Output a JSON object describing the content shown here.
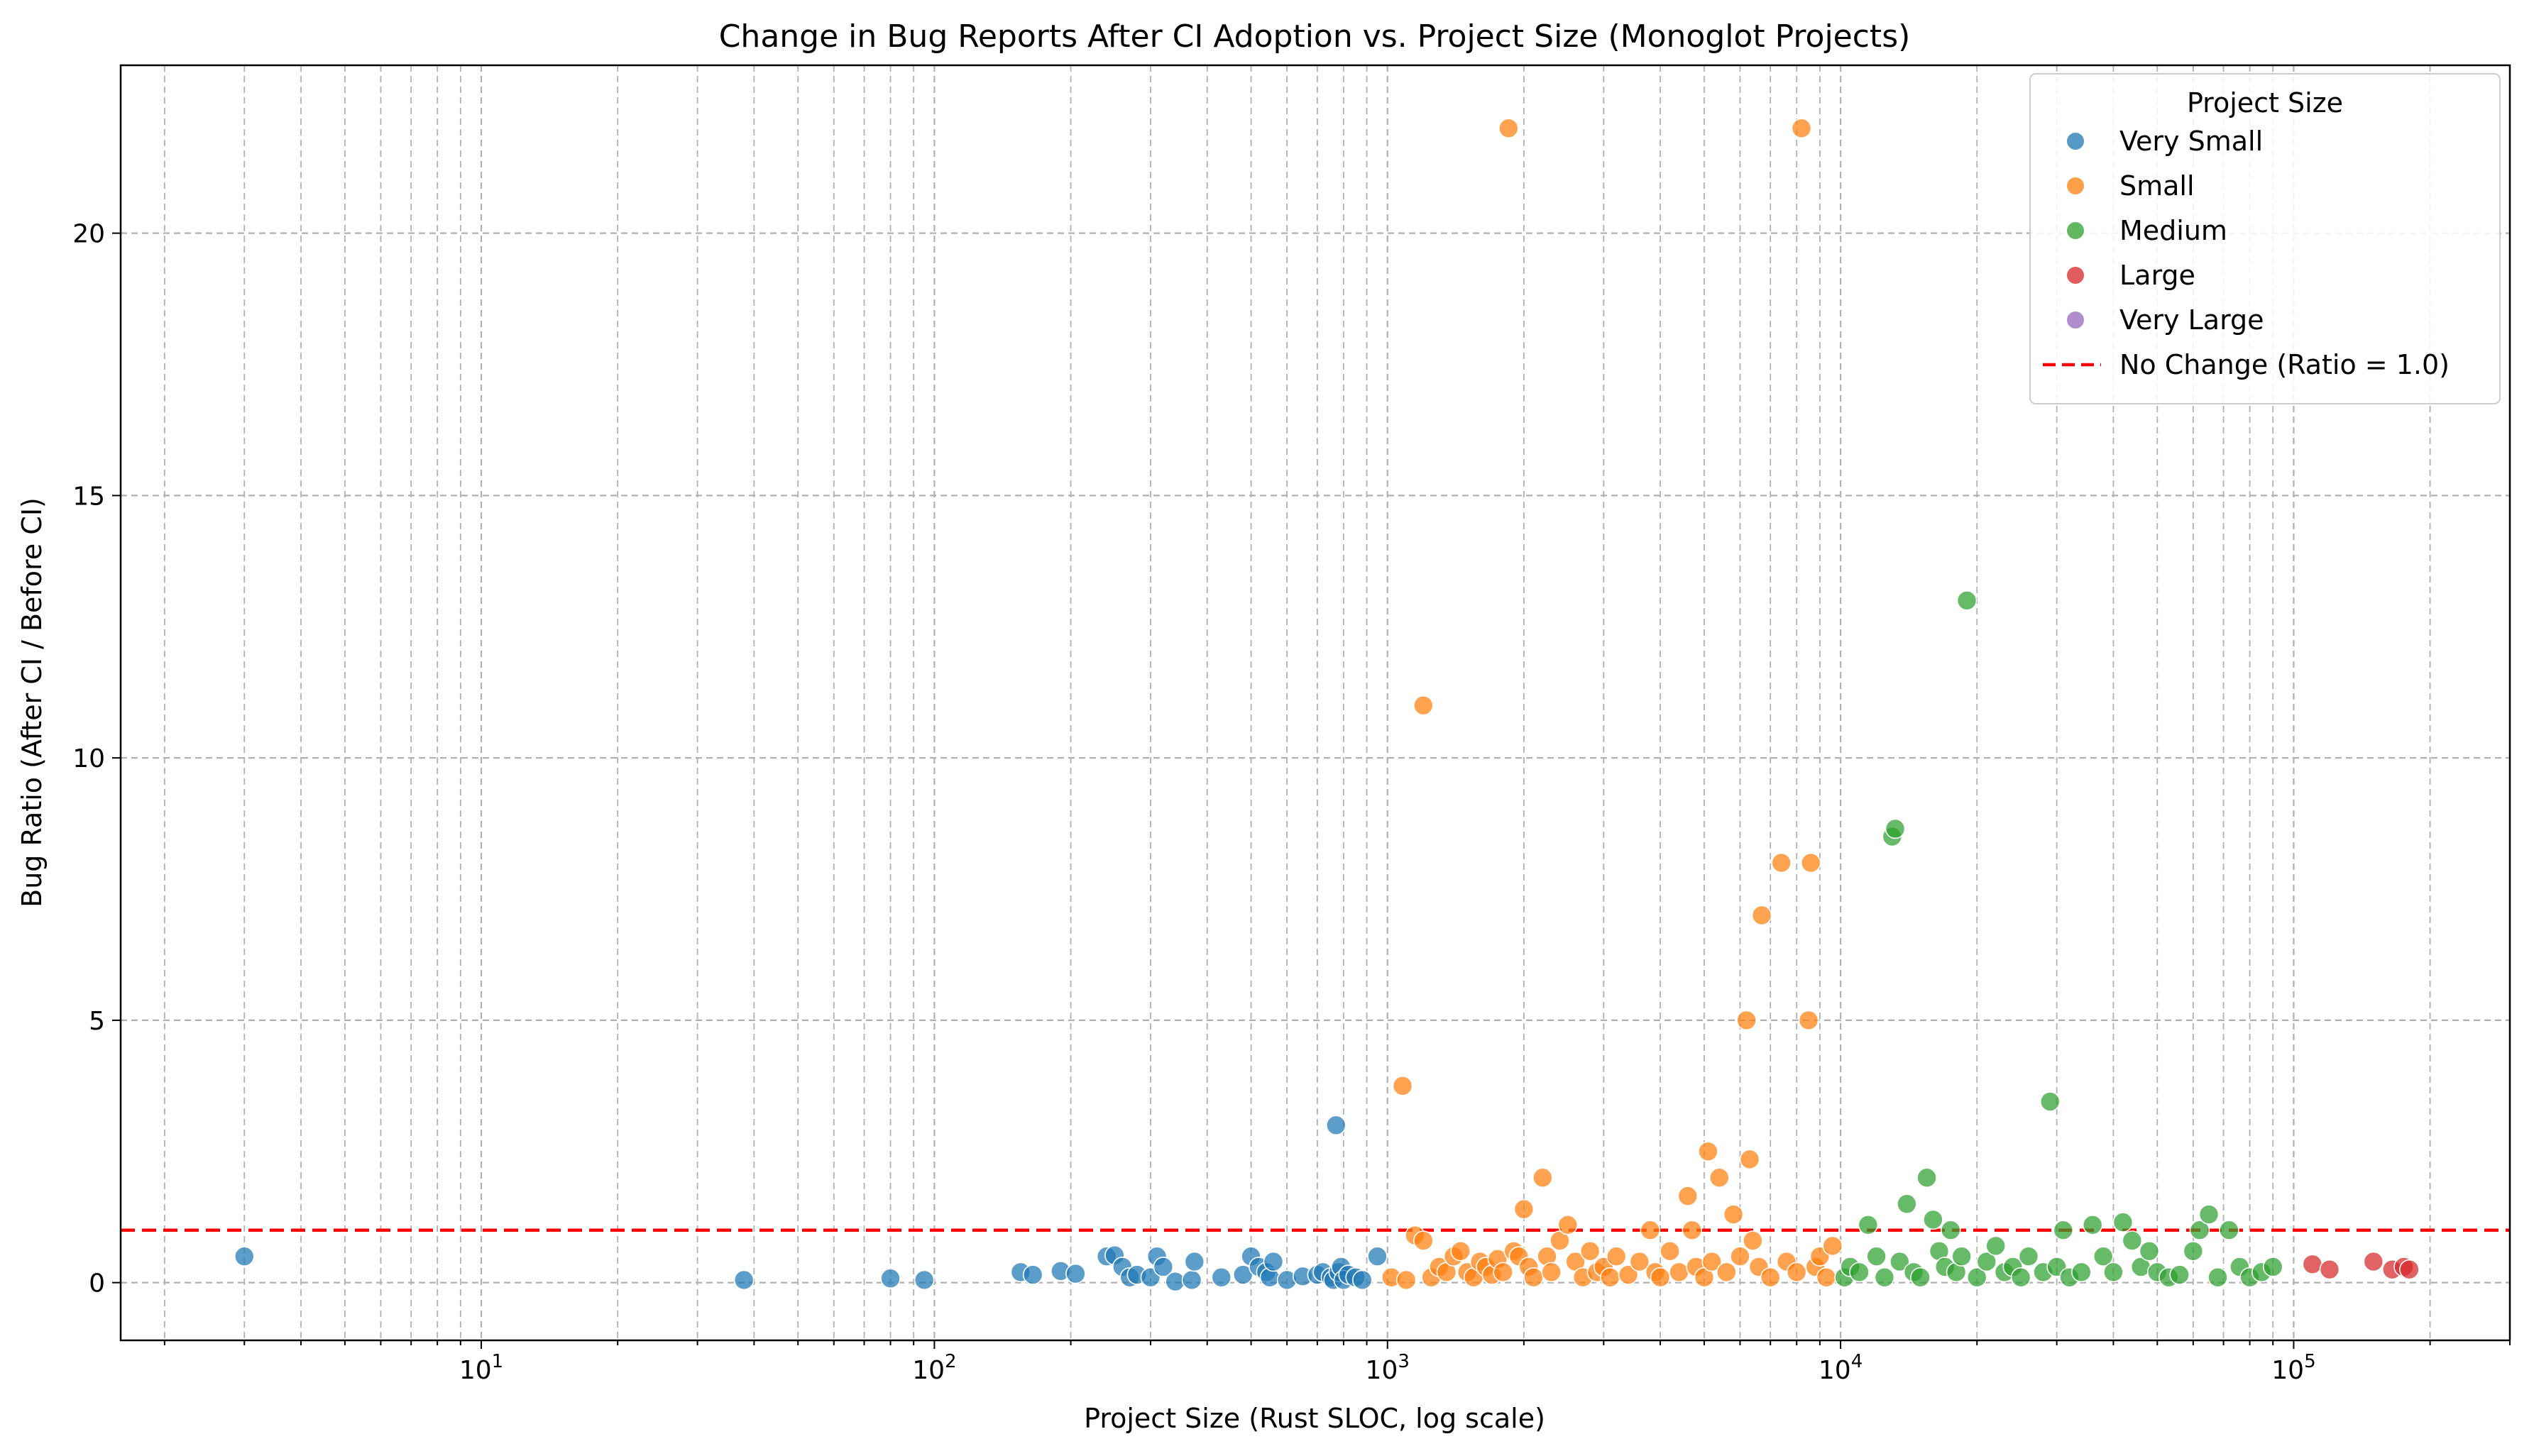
{
  "chart_data": {
    "type": "scatter",
    "title": "Change in Bug Reports After CI Adoption vs. Project Size (Monoglot Projects)",
    "xlabel": "Project Size (Rust SLOC, log scale)",
    "ylabel": "Bug Ratio (After CI / Before CI)",
    "x_scale": "log",
    "xlim": [
      1.6,
      300000
    ],
    "ylim": [
      -1.1,
      23.2
    ],
    "x_ticks": [
      {
        "value": 10,
        "base": "10",
        "exp": "1"
      },
      {
        "value": 100,
        "base": "10",
        "exp": "2"
      },
      {
        "value": 1000,
        "base": "10",
        "exp": "3"
      },
      {
        "value": 10000,
        "base": "10",
        "exp": "4"
      },
      {
        "value": 100000,
        "base": "10",
        "exp": "5"
      }
    ],
    "y_ticks": [
      0,
      5,
      10,
      15,
      20
    ],
    "grid": true,
    "legend": {
      "title": "Project Size",
      "placement": "top-right",
      "reference_label": "No Change (Ratio = 1.0)"
    },
    "reference_line": {
      "y": 1.0,
      "label": "No Change (Ratio = 1.0)",
      "color": "#ff0000",
      "style": "dashed"
    },
    "series": [
      {
        "name": "Very Small",
        "color": "#1f77b4",
        "points": [
          [
            3,
            0.5
          ],
          [
            38,
            0.05
          ],
          [
            80,
            0.08
          ],
          [
            95,
            0.05
          ],
          [
            155,
            0.2
          ],
          [
            165,
            0.15
          ],
          [
            190,
            0.22
          ],
          [
            205,
            0.17
          ],
          [
            240,
            0.5
          ],
          [
            250,
            0.52
          ],
          [
            260,
            0.3
          ],
          [
            270,
            0.1
          ],
          [
            280,
            0.15
          ],
          [
            300,
            0.1
          ],
          [
            310,
            0.5
          ],
          [
            320,
            0.3
          ],
          [
            340,
            0.02
          ],
          [
            370,
            0.05
          ],
          [
            375,
            0.4
          ],
          [
            430,
            0.1
          ],
          [
            480,
            0.15
          ],
          [
            500,
            0.5
          ],
          [
            520,
            0.3
          ],
          [
            540,
            0.2
          ],
          [
            550,
            0.1
          ],
          [
            560,
            0.4
          ],
          [
            600,
            0.05
          ],
          [
            650,
            0.12
          ],
          [
            700,
            0.15
          ],
          [
            720,
            0.2
          ],
          [
            750,
            0.1
          ],
          [
            760,
            0.05
          ],
          [
            770,
            3.0
          ],
          [
            780,
            0.2
          ],
          [
            790,
            0.3
          ],
          [
            800,
            0.05
          ],
          [
            820,
            0.15
          ],
          [
            850,
            0.1
          ],
          [
            880,
            0.05
          ],
          [
            950,
            0.5
          ]
        ]
      },
      {
        "name": "Small",
        "color": "#ff7f0e",
        "points": [
          [
            1020,
            0.1
          ],
          [
            1080,
            3.75
          ],
          [
            1100,
            0.05
          ],
          [
            1150,
            0.9
          ],
          [
            1200,
            11.0
          ],
          [
            1200,
            0.8
          ],
          [
            1250,
            0.1
          ],
          [
            1300,
            0.3
          ],
          [
            1350,
            0.2
          ],
          [
            1400,
            0.5
          ],
          [
            1450,
            0.6
          ],
          [
            1500,
            0.2
          ],
          [
            1550,
            0.1
          ],
          [
            1600,
            0.4
          ],
          [
            1650,
            0.3
          ],
          [
            1700,
            0.15
          ],
          [
            1750,
            0.45
          ],
          [
            1800,
            0.2
          ],
          [
            1850,
            22.0
          ],
          [
            1900,
            0.6
          ],
          [
            1950,
            0.5
          ],
          [
            2000,
            1.4
          ],
          [
            2050,
            0.3
          ],
          [
            2100,
            0.1
          ],
          [
            2200,
            2.0
          ],
          [
            2250,
            0.5
          ],
          [
            2300,
            0.2
          ],
          [
            2400,
            0.8
          ],
          [
            2500,
            1.1
          ],
          [
            2600,
            0.4
          ],
          [
            2700,
            0.1
          ],
          [
            2800,
            0.6
          ],
          [
            2900,
            0.2
          ],
          [
            3000,
            0.3
          ],
          [
            3100,
            0.1
          ],
          [
            3200,
            0.5
          ],
          [
            3400,
            0.15
          ],
          [
            3600,
            0.4
          ],
          [
            3800,
            1.0
          ],
          [
            3900,
            0.2
          ],
          [
            4000,
            0.1
          ],
          [
            4200,
            0.6
          ],
          [
            4400,
            0.2
          ],
          [
            4600,
            1.65
          ],
          [
            4700,
            1.0
          ],
          [
            4800,
            0.3
          ],
          [
            5000,
            0.1
          ],
          [
            5100,
            2.5
          ],
          [
            5200,
            0.4
          ],
          [
            5400,
            2.0
          ],
          [
            5600,
            0.2
          ],
          [
            5800,
            1.3
          ],
          [
            6000,
            0.5
          ],
          [
            6200,
            5.0
          ],
          [
            6300,
            2.35
          ],
          [
            6400,
            0.8
          ],
          [
            6600,
            0.3
          ],
          [
            6700,
            7.0
          ],
          [
            7000,
            0.1
          ],
          [
            7400,
            8.0
          ],
          [
            7600,
            0.4
          ],
          [
            8000,
            0.2
          ],
          [
            8200,
            22.0
          ],
          [
            8500,
            5.0
          ],
          [
            8600,
            8.0
          ],
          [
            8800,
            0.3
          ],
          [
            9000,
            0.5
          ],
          [
            9300,
            0.1
          ],
          [
            9600,
            0.7
          ]
        ]
      },
      {
        "name": "Medium",
        "color": "#2ca02c",
        "points": [
          [
            10200,
            0.1
          ],
          [
            10500,
            0.3
          ],
          [
            11000,
            0.2
          ],
          [
            11500,
            1.1
          ],
          [
            12000,
            0.5
          ],
          [
            12500,
            0.1
          ],
          [
            13000,
            8.5
          ],
          [
            13200,
            8.65
          ],
          [
            13500,
            0.4
          ],
          [
            14000,
            1.5
          ],
          [
            14500,
            0.2
          ],
          [
            15000,
            0.1
          ],
          [
            15500,
            2.0
          ],
          [
            16000,
            1.2
          ],
          [
            16500,
            0.6
          ],
          [
            17000,
            0.3
          ],
          [
            17500,
            1.0
          ],
          [
            18000,
            0.2
          ],
          [
            18500,
            0.5
          ],
          [
            19000,
            13.0
          ],
          [
            20000,
            0.1
          ],
          [
            21000,
            0.4
          ],
          [
            22000,
            0.7
          ],
          [
            23000,
            0.2
          ],
          [
            24000,
            0.3
          ],
          [
            25000,
            0.1
          ],
          [
            26000,
            0.5
          ],
          [
            28000,
            0.2
          ],
          [
            29000,
            3.45
          ],
          [
            30000,
            0.3
          ],
          [
            31000,
            1.0
          ],
          [
            32000,
            0.1
          ],
          [
            34000,
            0.2
          ],
          [
            36000,
            1.1
          ],
          [
            38000,
            0.5
          ],
          [
            40000,
            0.2
          ],
          [
            42000,
            1.15
          ],
          [
            44000,
            0.8
          ],
          [
            46000,
            0.3
          ],
          [
            48000,
            0.6
          ],
          [
            50000,
            0.2
          ],
          [
            53000,
            0.1
          ],
          [
            56000,
            0.15
          ],
          [
            60000,
            0.6
          ],
          [
            62000,
            1.0
          ],
          [
            65000,
            1.3
          ],
          [
            68000,
            0.1
          ],
          [
            72000,
            1.0
          ],
          [
            76000,
            0.3
          ],
          [
            80000,
            0.1
          ],
          [
            85000,
            0.2
          ],
          [
            90000,
            0.3
          ]
        ]
      },
      {
        "name": "Large",
        "color": "#d62728",
        "points": [
          [
            110000,
            0.35
          ],
          [
            120000,
            0.25
          ],
          [
            150000,
            0.4
          ],
          [
            165000,
            0.25
          ],
          [
            175000,
            0.3
          ],
          [
            180000,
            0.25
          ]
        ]
      },
      {
        "name": "Very Large",
        "color": "#9467bd",
        "points": []
      }
    ]
  }
}
